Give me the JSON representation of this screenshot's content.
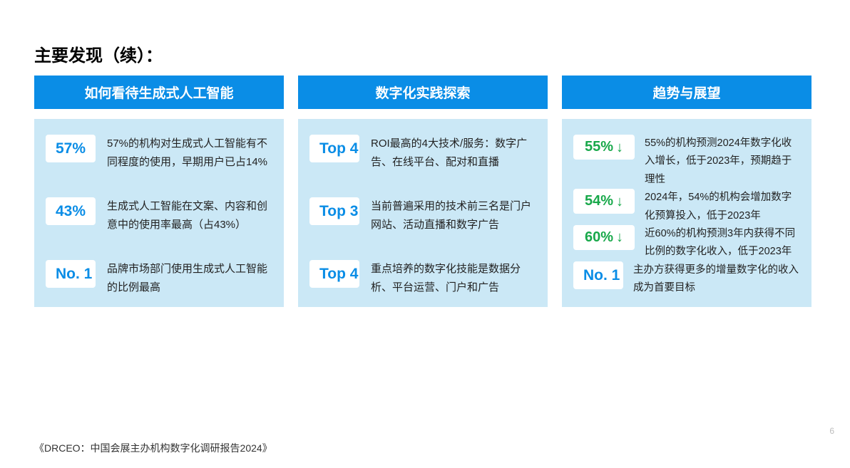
{
  "title": "主要发现（续）：",
  "columns": [
    {
      "header": "如何看待生成式人工智能",
      "items": [
        {
          "badge": "57%",
          "badge_style": "blue",
          "desc": "57%的机构对生成式人工智能有不同程度的使用，早期用户已占14%"
        },
        {
          "badge": "43%",
          "badge_style": "blue",
          "desc": "生成式人工智能在文案、内容和创意中的使用率最高（占43%）"
        },
        {
          "badge": "No. 1",
          "badge_style": "blue",
          "desc": "品牌市场部门使用生成式人工智能的比例最高"
        }
      ]
    },
    {
      "header": "数字化实践探索",
      "items": [
        {
          "badge": "Top 4",
          "badge_style": "blue",
          "desc": "ROI最高的4大技术/服务：数字广告、在线平台、配对和直播"
        },
        {
          "badge": "Top 3",
          "badge_style": "blue",
          "desc": "当前普遍采用的技术前三名是门户网站、活动直播和数字广告"
        },
        {
          "badge": "Top 4",
          "badge_style": "blue",
          "desc": "重点培养的数字化技能是数据分析、平台运营、门户和广告"
        }
      ]
    },
    {
      "header": "趋势与展望",
      "items": [
        {
          "badge": "55%",
          "badge_style": "green",
          "arrow": "↓",
          "desc": "55%的机构预测2024年数字化收入增长，低于2023年，预期趋于理性"
        },
        {
          "badge": "54%",
          "badge_style": "green",
          "arrow": "↓",
          "desc": "2024年，54%的机构会增加数字化预算投入，低于2023年"
        },
        {
          "badge": "60%",
          "badge_style": "green",
          "arrow": "↓",
          "desc": "近60%的机构预测3年内获得不同比例的数字化收入，低于2023年"
        },
        {
          "badge": "No. 1",
          "badge_style": "blue",
          "desc": "主办方获得更多的增量数字化的收入成为首要目标"
        }
      ]
    }
  ],
  "footer": "《DRCEO：中国会展主办机构数字化调研报告2024》",
  "page_number": "6",
  "colors": {
    "header_bg": "#0a8de6",
    "body_bg": "#cbe8f6",
    "badge_blue_text": "#0a8de6",
    "badge_green_text": "#18a84a",
    "page_bg": "#ffffff"
  }
}
